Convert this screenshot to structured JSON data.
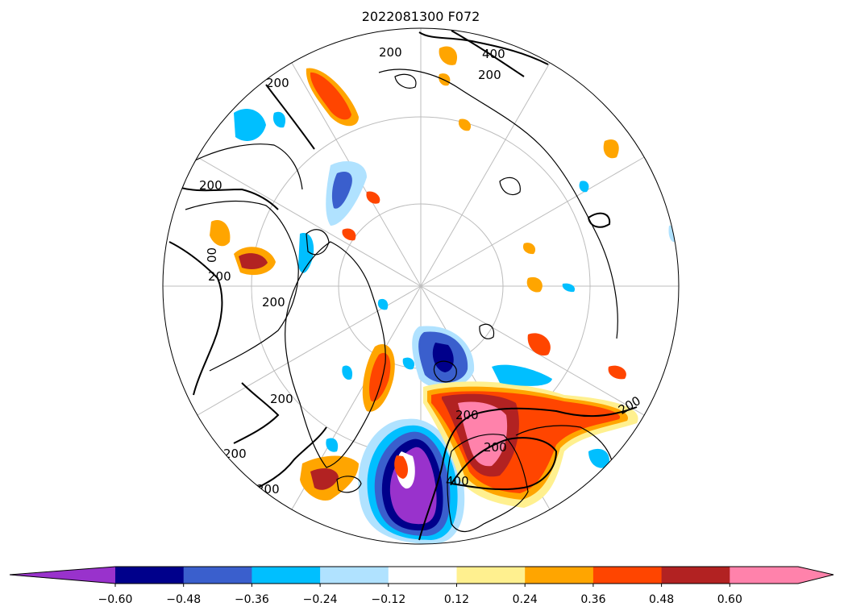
{
  "title": "2022081300 F072",
  "colorbar": {
    "colors": [
      "#9932cc",
      "#00008b",
      "#3a5fcd",
      "#00bfff",
      "#b0e2ff",
      "#ffffff",
      "#fff08f",
      "#ffa500",
      "#ff4500",
      "#b22222",
      "#ff82ab"
    ],
    "tick_labels": [
      "−0.60",
      "−0.48",
      "−0.36",
      "−0.24",
      "−0.12",
      "0.12",
      "0.24",
      "0.36",
      "0.48",
      "0.60"
    ]
  },
  "contour_labels": [
    "200",
    "200",
    "400",
    "200",
    "200",
    "00",
    "200",
    "200",
    "200",
    "200",
    "200",
    "200",
    "200",
    "400",
    "200"
  ],
  "map": {
    "projection": "north polar stereographic",
    "gridlines": "grey meridians every 30° and latitude circles"
  }
}
